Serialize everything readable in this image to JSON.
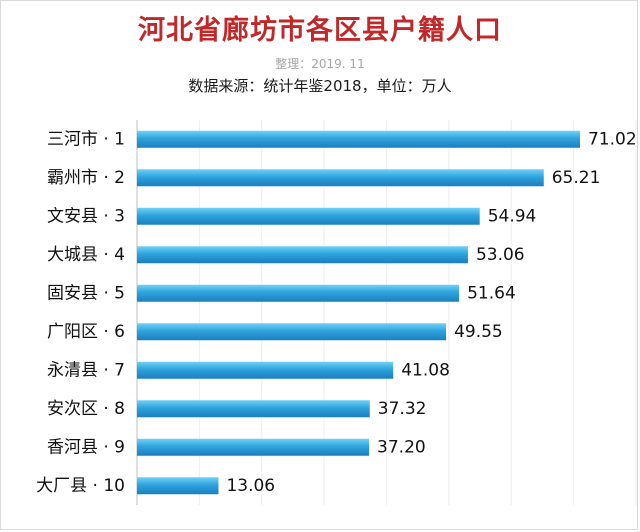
{
  "chart_data": {
    "type": "bar",
    "orientation": "horizontal",
    "title": "河北省廊坊市各区县户籍人口",
    "note": "整理：2019. 11",
    "subtitle": "数据来源：统计年鉴2018，单位：万人",
    "categories": [
      "三河市 · 1",
      "霸州市 · 2",
      "文安县 · 3",
      "大城县 · 4",
      "固安县 · 5",
      "广阳区 · 6",
      "永清县 · 7",
      "安次区 · 8",
      "香河县 · 9",
      "大厂县 · 10"
    ],
    "values": [
      71.02,
      65.21,
      54.94,
      53.06,
      51.64,
      49.55,
      41.08,
      37.32,
      37.2,
      13.06
    ],
    "value_labels": [
      "71.02",
      "65.21",
      "54.94",
      "53.06",
      "51.64",
      "49.55",
      "41.08",
      "37.32",
      "37.20",
      "13.06"
    ],
    "xlim": [
      0,
      80
    ],
    "grid": "vertical",
    "legend": "none",
    "colors": {
      "bar_top": "#6fd2f7",
      "bar_mid": "#2fa3dc",
      "bar_bottom": "#1a7fbf",
      "title": "#c0282a",
      "grid": "#eeeeee",
      "axis": "#bfbfbf"
    }
  }
}
